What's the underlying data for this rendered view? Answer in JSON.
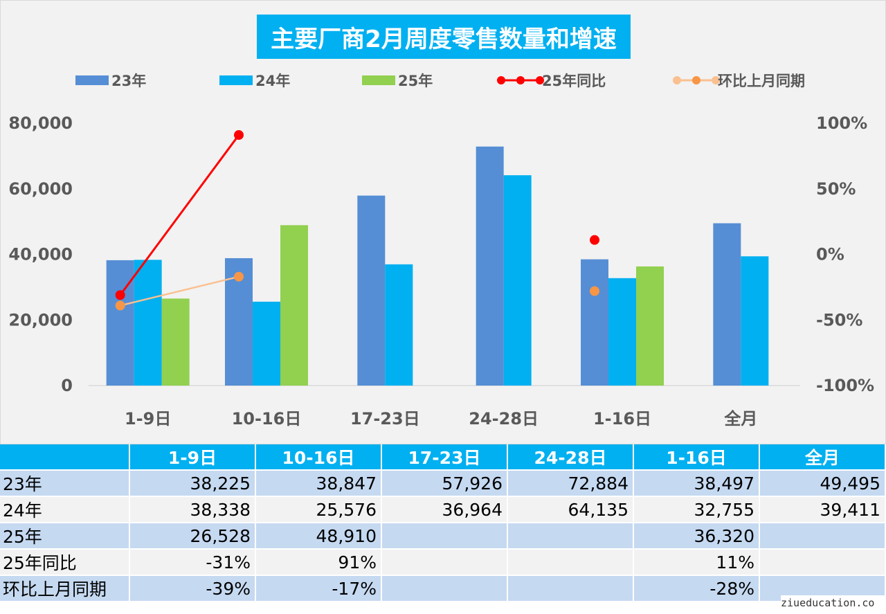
{
  "chart_data": {
    "type": "bar",
    "title": "主要厂商2月周度零售数量和增速",
    "categories": [
      "1-9日",
      "10-16日",
      "17-23日",
      "24-28日",
      "1-16日",
      "全月"
    ],
    "series": [
      {
        "name": "23年",
        "kind": "bar",
        "axis": "left",
        "color": "#558ed5",
        "values": [
          38225,
          38847,
          57926,
          72884,
          38497,
          49495
        ]
      },
      {
        "name": "24年",
        "kind": "bar",
        "axis": "left",
        "color": "#00b0f0",
        "values": [
          38338,
          25576,
          36964,
          64135,
          32755,
          39411
        ]
      },
      {
        "name": "25年",
        "kind": "bar",
        "axis": "left",
        "color": "#92d050",
        "values": [
          26528,
          48910,
          null,
          null,
          36320,
          null
        ]
      },
      {
        "name": "25年同比",
        "kind": "line",
        "axis": "right",
        "color": "#ff0000",
        "values": [
          -31,
          91,
          null,
          null,
          11,
          null
        ]
      },
      {
        "name": "环比上月同期",
        "kind": "line",
        "axis": "right",
        "color": "#f79646",
        "line_color": "#fac090",
        "values": [
          -39,
          -17,
          null,
          null,
          -28,
          null
        ]
      }
    ],
    "ylim_left": [
      0,
      80000
    ],
    "left_ticks": [
      "80,000",
      "60,000",
      "40,000",
      "20,000",
      "0"
    ],
    "ylim_right": [
      -100,
      100
    ],
    "right_ticks": [
      "100%",
      "50%",
      "0%",
      "-50%",
      "-100%"
    ],
    "legend_position": "top",
    "grid": false
  },
  "table": {
    "headers": [
      "1-9日",
      "10-16日",
      "17-23日",
      "24-28日",
      "1-16日",
      "全月"
    ],
    "rows": [
      {
        "label": "23年",
        "cells": [
          "38,225",
          "38,847",
          "57,926",
          "72,884",
          "38,497",
          "49,495"
        ]
      },
      {
        "label": "24年",
        "cells": [
          "38,338",
          "25,576",
          "36,964",
          "64,135",
          "32,755",
          "39,411"
        ]
      },
      {
        "label": "25年",
        "cells": [
          "26,528",
          "48,910",
          "",
          "",
          "36,320",
          ""
        ]
      },
      {
        "label": "25年同比",
        "cells": [
          "-31%",
          "91%",
          "",
          "",
          "11%",
          ""
        ]
      },
      {
        "label": "环比上月同期",
        "cells": [
          "-39%",
          "-17%",
          "",
          "",
          "-28%",
          ""
        ]
      }
    ]
  },
  "watermark": "ziueducation.co"
}
